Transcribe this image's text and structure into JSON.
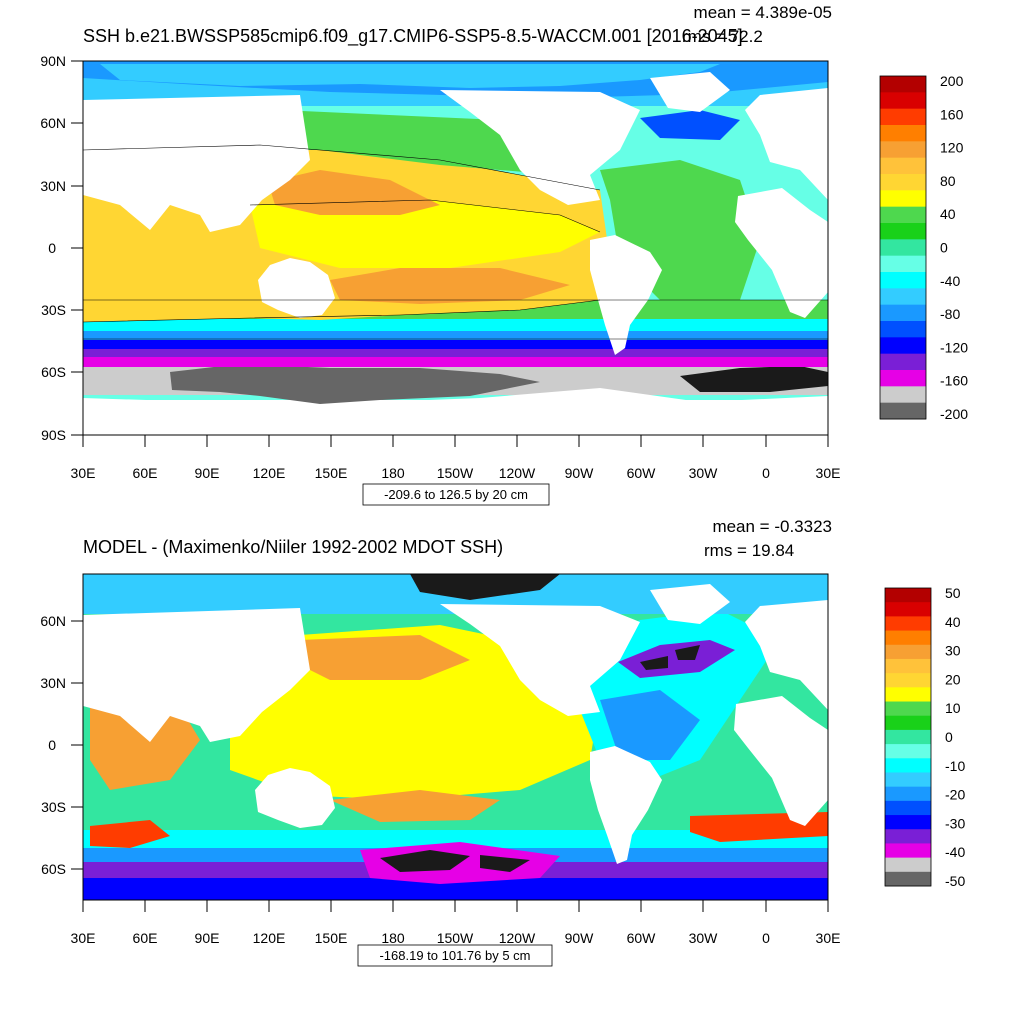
{
  "chart_data": [
    {
      "type": "heatmap",
      "title": "SSH b.e21.BWSSP585cmip6.f09_g17.CMIP6-SSP5-8.5-WACCM.001 [2016-2045]",
      "stat_mean": "mean = 4.389e-05",
      "stat_rms": "rms = 72.2",
      "range_note": "-209.6 to 126.5 by 20 cm",
      "x_ticks": [
        "30E",
        "60E",
        "90E",
        "120E",
        "150E",
        "180",
        "150W",
        "120W",
        "90W",
        "60W",
        "30W",
        "0",
        "30E"
      ],
      "y_ticks": [
        "90N",
        "60N",
        "30N",
        "0",
        "30S",
        "60S",
        "90S"
      ],
      "ylim": [
        -90,
        90
      ],
      "colorbar": {
        "labels": [
          "200",
          "160",
          "120",
          "80",
          "40",
          "0",
          "-40",
          "-80",
          "-120",
          "-160",
          "-200"
        ],
        "colors": [
          "#b30000",
          "#d90000",
          "#ff3c00",
          "#ff7f00",
          "#f7a033",
          "#ffc23a",
          "#ffd633",
          "#ffff00",
          "#4ed84e",
          "#19d119",
          "#33e6a0",
          "#66ffe6",
          "#00ffff",
          "#33ccff",
          "#1a99ff",
          "#0050ff",
          "#0000ff",
          "#7a1fd6",
          "#e600e6",
          "#cccccc",
          "#666666"
        ]
      }
    },
    {
      "type": "heatmap",
      "title": "MODEL - (Maximenko/Niiler 1992-2002 MDOT SSH)",
      "stat_mean": "mean = -0.3323",
      "stat_rms": "rms = 19.84",
      "range_note": "-168.19 to 101.76 by 5 cm",
      "x_ticks": [
        "30E",
        "60E",
        "90E",
        "120E",
        "150E",
        "180",
        "150W",
        "120W",
        "90W",
        "60W",
        "30W",
        "0",
        "30E"
      ],
      "y_ticks": [
        "60N",
        "30N",
        "0",
        "30S",
        "60S"
      ],
      "ylim": [
        -78,
        84
      ],
      "colorbar": {
        "labels": [
          "50",
          "40",
          "30",
          "20",
          "10",
          "0",
          "-10",
          "-20",
          "-30",
          "-40",
          "-50"
        ],
        "colors": [
          "#b30000",
          "#d90000",
          "#ff3c00",
          "#ff7f00",
          "#f7a033",
          "#ffc23a",
          "#ffd633",
          "#ffff00",
          "#4ed84e",
          "#19d119",
          "#33e6a0",
          "#66ffe6",
          "#00ffff",
          "#33ccff",
          "#1a99ff",
          "#0050ff",
          "#0000ff",
          "#7a1fd6",
          "#e600e6",
          "#cccccc",
          "#666666"
        ]
      }
    }
  ]
}
